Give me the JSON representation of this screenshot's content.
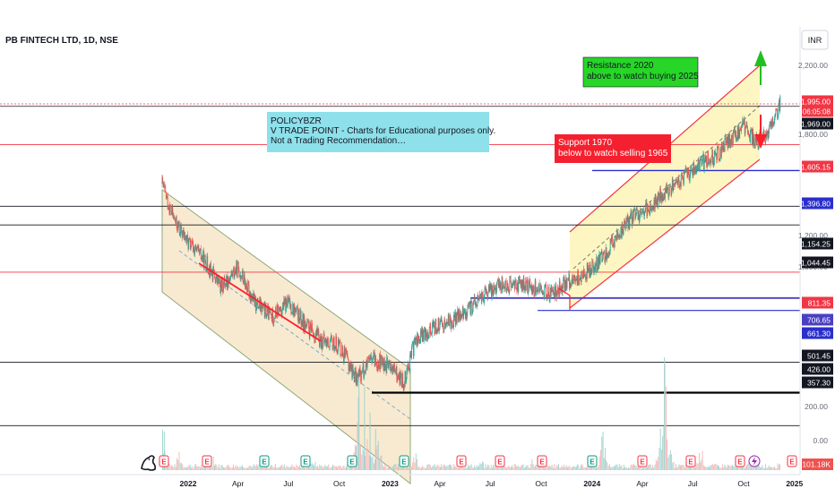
{
  "header": {
    "symbol_title": "PB FINTECH LTD, 1D, NSE",
    "currency_button": "INR"
  },
  "chart_data": {
    "type": "candlestick",
    "symbol": "PB FINTECH LTD, 1D, NSE",
    "x_range": [
      "2021-11-15",
      "2024-12-31"
    ],
    "x_ticks": [
      {
        "label": "2022",
        "date": "2022-01-01"
      },
      {
        "label": "Apr",
        "date": "2022-04-01"
      },
      {
        "label": "Jul",
        "date": "2022-07-01"
      },
      {
        "label": "Oct",
        "date": "2022-10-01"
      },
      {
        "label": "2023",
        "date": "2023-01-01"
      },
      {
        "label": "Apr",
        "date": "2023-04-01"
      },
      {
        "label": "Jul",
        "date": "2023-07-01"
      },
      {
        "label": "Oct",
        "date": "2023-10-01"
      },
      {
        "label": "2024",
        "date": "2024-01-01"
      },
      {
        "label": "Apr",
        "date": "2024-04-01"
      },
      {
        "label": "Jul",
        "date": "2024-07-01"
      },
      {
        "label": "Oct",
        "date": "2024-10-01"
      },
      {
        "label": "2025",
        "date": "2025-01-01"
      }
    ],
    "y_scale": "log",
    "y_ticks": [
      "2,200.00",
      "1,800.00",
      "1,200.00",
      "1,000.00",
      "200.00",
      "0.00"
    ],
    "price_series": [
      {
        "date": "2021-11-15",
        "close": 1300
      },
      {
        "date": "2021-11-25",
        "close": 1180
      },
      {
        "date": "2021-12-10",
        "close": 1050
      },
      {
        "date": "2022-01-01",
        "close": 950
      },
      {
        "date": "2022-02-01",
        "close": 860
      },
      {
        "date": "2022-03-01",
        "close": 750
      },
      {
        "date": "2022-04-01",
        "close": 830
      },
      {
        "date": "2022-05-01",
        "close": 690
      },
      {
        "date": "2022-06-01",
        "close": 640
      },
      {
        "date": "2022-07-01",
        "close": 690
      },
      {
        "date": "2022-08-01",
        "close": 610
      },
      {
        "date": "2022-09-01",
        "close": 560
      },
      {
        "date": "2022-10-01",
        "close": 550
      },
      {
        "date": "2022-11-01",
        "close": 460
      },
      {
        "date": "2022-12-01",
        "close": 510
      },
      {
        "date": "2023-01-01",
        "close": 490
      },
      {
        "date": "2023-01-25",
        "close": 450
      },
      {
        "date": "2023-02-15",
        "close": 560
      },
      {
        "date": "2023-03-15",
        "close": 600
      },
      {
        "date": "2023-04-15",
        "close": 620
      },
      {
        "date": "2023-05-15",
        "close": 650
      },
      {
        "date": "2023-06-15",
        "close": 710
      },
      {
        "date": "2023-07-15",
        "close": 760
      },
      {
        "date": "2023-08-15",
        "close": 760
      },
      {
        "date": "2023-09-15",
        "close": 750
      },
      {
        "date": "2023-10-20",
        "close": 720
      },
      {
        "date": "2023-11-15",
        "close": 770
      },
      {
        "date": "2023-12-10",
        "close": 790
      },
      {
        "date": "2024-01-15",
        "close": 860
      },
      {
        "date": "2024-02-15",
        "close": 980
      },
      {
        "date": "2024-03-15",
        "close": 1090
      },
      {
        "date": "2024-04-15",
        "close": 1150
      },
      {
        "date": "2024-05-15",
        "close": 1260
      },
      {
        "date": "2024-06-15",
        "close": 1350
      },
      {
        "date": "2024-07-15",
        "close": 1450
      },
      {
        "date": "2024-08-15",
        "close": 1520
      },
      {
        "date": "2024-09-15",
        "close": 1700
      },
      {
        "date": "2024-10-01",
        "close": 1780
      },
      {
        "date": "2024-10-25",
        "close": 1620
      },
      {
        "date": "2024-11-20",
        "close": 1750
      },
      {
        "date": "2024-12-06",
        "close": 1995
      }
    ],
    "volume_series": [
      {
        "date": "2021-11-15",
        "volume": 4.0
      },
      {
        "date": "2021-12-15",
        "volume": 1.5
      },
      {
        "date": "2022-02-15",
        "volume": 1.2
      },
      {
        "date": "2022-05-15",
        "volume": 1.0
      },
      {
        "date": "2022-08-15",
        "volume": 0.9
      },
      {
        "date": "2022-11-05",
        "volume": 7.0
      },
      {
        "date": "2022-11-20",
        "volume": 5.0
      },
      {
        "date": "2022-12-10",
        "volume": 3.0
      },
      {
        "date": "2023-02-15",
        "volume": 1.5
      },
      {
        "date": "2023-06-15",
        "volume": 0.8
      },
      {
        "date": "2023-09-15",
        "volume": 0.9
      },
      {
        "date": "2024-01-20",
        "volume": 3.0
      },
      {
        "date": "2024-05-10",
        "volume": 9.0
      },
      {
        "date": "2024-07-15",
        "volume": 2.0
      },
      {
        "date": "2024-10-15",
        "volume": 1.6
      },
      {
        "date": "2024-12-06",
        "volume": 1.0
      }
    ],
    "volume_label": "101.18K",
    "price_labels": [
      {
        "value": 1995.0,
        "text": "1,995.00",
        "bg": "#f23645"
      },
      {
        "value": 1969.0,
        "text": "1,969.00",
        "bg": "#131722"
      },
      {
        "value": 1605.15,
        "text": "1,605.15",
        "bg": "#f23645"
      },
      {
        "value": 1396.8,
        "text": "1,396.80",
        "bg": "#2a2ecd"
      },
      {
        "value": 1154.25,
        "text": "1,154.25",
        "bg": "#131722"
      },
      {
        "value": 1044.45,
        "text": "1,044.45",
        "bg": "#131722"
      },
      {
        "value": 811.35,
        "text": "811.35",
        "bg": "#f23645"
      },
      {
        "value": 706.65,
        "text": "706.65",
        "bg": "#4a3fc2"
      },
      {
        "value": 661.3,
        "text": "661.30",
        "bg": "#2a2ecd"
      },
      {
        "value": 501.45,
        "text": "501.45",
        "bg": "#131722"
      },
      {
        "value": 426.0,
        "text": "426.00",
        "bg": "#131722"
      },
      {
        "value": 357.3,
        "text": "357.30",
        "bg": "#131722"
      }
    ],
    "countdown_label": "06:05:08",
    "annotations": [
      {
        "lines": [
          "POLICYBZR",
          "V TRADE POINT - Charts for Educational purposes only.",
          "Not a Trading Recommendation…"
        ],
        "bg": "#8ee0ea"
      },
      {
        "lines": [
          "Resistance 2020",
          "above to watch buying 2025"
        ],
        "bg": "#27d627"
      },
      {
        "lines": [
          "Support 1970",
          "below to watch selling 1965"
        ],
        "bg": "#f5202f"
      }
    ],
    "event_markers": [
      "E",
      "E",
      "E",
      "E",
      "E",
      "E",
      "E",
      "E",
      "E",
      "E",
      "E",
      "E",
      "E",
      "E",
      "E"
    ],
    "colors": {
      "up": "#26a69a",
      "down": "#ef5350",
      "resistance": "#f23645",
      "channel_fill": "#f7e6c8",
      "uptrend_fill": "#fdf6c3",
      "blue_line": "#2a2ecd"
    }
  }
}
